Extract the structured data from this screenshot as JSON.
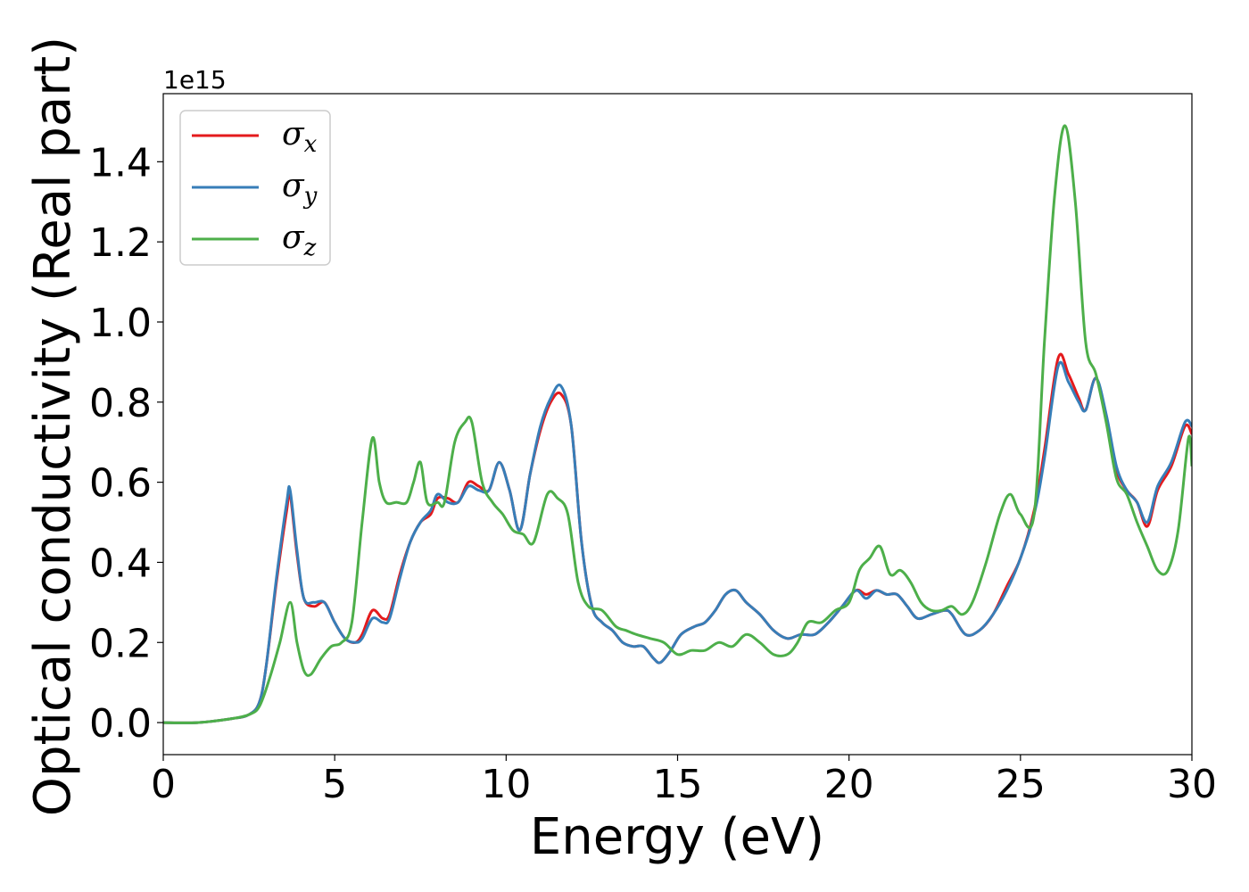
{
  "chart_data": {
    "type": "line",
    "xlabel": "Energy (eV)",
    "ylabel": "Optical conductivity (Real part)",
    "y_offset_text": "1e15",
    "y_scale": 1000000000000000.0,
    "xlim": [
      0,
      30
    ],
    "ylim": [
      -0.08,
      1.57
    ],
    "xticks": [
      0,
      5,
      10,
      15,
      20,
      25,
      30
    ],
    "xtick_labels": [
      "0",
      "5",
      "10",
      "15",
      "20",
      "25",
      "30"
    ],
    "yticks": [
      0.0,
      0.2,
      0.4,
      0.6,
      0.8,
      1.0,
      1.2,
      1.4
    ],
    "ytick_labels": [
      "0.0",
      "0.2",
      "0.4",
      "0.6",
      "0.8",
      "1.0",
      "1.2",
      "1.4"
    ],
    "grid": false,
    "legend_position": "upper-left",
    "series": [
      {
        "name": "σx",
        "legend_symbol": "σ",
        "legend_subscript": "x",
        "color": "#e41a1c",
        "x": [
          0,
          1,
          2,
          2.5,
          2.8,
          3.0,
          3.3,
          3.6,
          3.7,
          3.9,
          4.1,
          4.4,
          4.7,
          5.0,
          5.3,
          5.6,
          5.8,
          6.1,
          6.4,
          6.6,
          6.9,
          7.2,
          7.5,
          7.8,
          8.0,
          8.3,
          8.6,
          8.9,
          9.2,
          9.5,
          9.8,
          10.1,
          10.4,
          10.7,
          11.0,
          11.3,
          11.6,
          11.9,
          12.2,
          12.5,
          12.8,
          13.1,
          13.4,
          13.7,
          14.0,
          14.3,
          14.5,
          14.8,
          15.1,
          15.5,
          15.8,
          16.1,
          16.4,
          16.7,
          17.0,
          17.4,
          17.8,
          18.2,
          18.6,
          19.0,
          19.4,
          19.8,
          20.2,
          20.5,
          20.8,
          21.1,
          21.4,
          21.7,
          22.0,
          22.4,
          22.8,
          23.0,
          23.4,
          23.8,
          24.2,
          24.6,
          25.0,
          25.4,
          25.7,
          26.1,
          26.4,
          26.7,
          26.9,
          27.2,
          27.5,
          27.8,
          28.1,
          28.4,
          28.7,
          29.0,
          29.4,
          29.8,
          30.0
        ],
        "y": [
          0.0,
          0.0,
          0.01,
          0.02,
          0.05,
          0.14,
          0.35,
          0.53,
          0.57,
          0.42,
          0.31,
          0.29,
          0.3,
          0.25,
          0.21,
          0.2,
          0.22,
          0.28,
          0.26,
          0.27,
          0.37,
          0.45,
          0.5,
          0.52,
          0.56,
          0.56,
          0.55,
          0.6,
          0.59,
          0.58,
          0.65,
          0.58,
          0.48,
          0.62,
          0.73,
          0.8,
          0.82,
          0.74,
          0.45,
          0.29,
          0.25,
          0.23,
          0.2,
          0.19,
          0.19,
          0.16,
          0.15,
          0.18,
          0.22,
          0.24,
          0.25,
          0.28,
          0.32,
          0.33,
          0.3,
          0.27,
          0.23,
          0.21,
          0.22,
          0.22,
          0.25,
          0.29,
          0.33,
          0.32,
          0.33,
          0.32,
          0.32,
          0.29,
          0.26,
          0.27,
          0.28,
          0.27,
          0.22,
          0.23,
          0.27,
          0.34,
          0.41,
          0.53,
          0.68,
          0.91,
          0.87,
          0.81,
          0.78,
          0.86,
          0.76,
          0.63,
          0.58,
          0.55,
          0.49,
          0.58,
          0.64,
          0.74,
          0.72
        ]
      },
      {
        "name": "σy",
        "legend_symbol": "σ",
        "legend_subscript": "y",
        "color": "#377eb8",
        "x": [
          0,
          1,
          2,
          2.5,
          2.8,
          3.0,
          3.3,
          3.6,
          3.7,
          3.9,
          4.1,
          4.4,
          4.7,
          5.0,
          5.3,
          5.6,
          5.8,
          6.1,
          6.4,
          6.6,
          6.9,
          7.2,
          7.5,
          7.8,
          8.0,
          8.3,
          8.6,
          8.9,
          9.2,
          9.5,
          9.8,
          10.1,
          10.4,
          10.7,
          11.0,
          11.3,
          11.6,
          11.9,
          12.2,
          12.5,
          12.8,
          13.1,
          13.4,
          13.7,
          14.0,
          14.3,
          14.5,
          14.8,
          15.1,
          15.5,
          15.8,
          16.1,
          16.4,
          16.7,
          17.0,
          17.4,
          17.8,
          18.2,
          18.6,
          19.0,
          19.4,
          19.8,
          20.2,
          20.5,
          20.8,
          21.1,
          21.4,
          21.7,
          22.0,
          22.4,
          22.8,
          23.0,
          23.4,
          23.8,
          24.2,
          24.6,
          25.0,
          25.4,
          25.7,
          26.1,
          26.4,
          26.7,
          26.9,
          27.2,
          27.5,
          27.8,
          28.1,
          28.4,
          28.7,
          29.0,
          29.4,
          29.8,
          30.0
        ],
        "y": [
          0.0,
          0.0,
          0.01,
          0.02,
          0.05,
          0.14,
          0.36,
          0.55,
          0.58,
          0.43,
          0.31,
          0.3,
          0.3,
          0.25,
          0.21,
          0.2,
          0.21,
          0.26,
          0.25,
          0.26,
          0.36,
          0.45,
          0.5,
          0.53,
          0.57,
          0.55,
          0.55,
          0.59,
          0.58,
          0.58,
          0.65,
          0.58,
          0.48,
          0.62,
          0.74,
          0.81,
          0.84,
          0.74,
          0.45,
          0.29,
          0.25,
          0.23,
          0.2,
          0.19,
          0.19,
          0.16,
          0.15,
          0.18,
          0.22,
          0.24,
          0.25,
          0.28,
          0.32,
          0.33,
          0.3,
          0.27,
          0.23,
          0.21,
          0.22,
          0.22,
          0.25,
          0.29,
          0.33,
          0.31,
          0.33,
          0.32,
          0.32,
          0.29,
          0.26,
          0.27,
          0.28,
          0.27,
          0.22,
          0.23,
          0.27,
          0.33,
          0.41,
          0.52,
          0.66,
          0.89,
          0.85,
          0.8,
          0.78,
          0.86,
          0.77,
          0.64,
          0.58,
          0.55,
          0.5,
          0.59,
          0.65,
          0.75,
          0.74
        ]
      },
      {
        "name": "σz",
        "legend_symbol": "σ",
        "legend_subscript": "z",
        "color": "#4daf4a",
        "x": [
          0,
          1,
          2,
          2.5,
          2.8,
          3.1,
          3.4,
          3.7,
          3.9,
          4.1,
          4.3,
          4.6,
          4.9,
          5.2,
          5.5,
          5.8,
          6.1,
          6.3,
          6.5,
          6.8,
          7.1,
          7.3,
          7.5,
          7.7,
          8.0,
          8.2,
          8.5,
          8.8,
          9.0,
          9.3,
          9.6,
          9.9,
          10.2,
          10.5,
          10.8,
          11.2,
          11.5,
          11.8,
          12.1,
          12.4,
          12.8,
          13.2,
          13.5,
          13.8,
          14.2,
          14.6,
          15.0,
          15.4,
          15.8,
          16.2,
          16.6,
          17.0,
          17.4,
          17.8,
          18.2,
          18.5,
          18.8,
          19.2,
          19.6,
          20.0,
          20.3,
          20.6,
          20.9,
          21.2,
          21.5,
          21.8,
          22.1,
          22.4,
          22.7,
          23.0,
          23.3,
          23.6,
          24.0,
          24.4,
          24.7,
          25.0,
          25.4,
          25.7,
          26.0,
          26.3,
          26.6,
          26.9,
          27.2,
          27.5,
          27.8,
          28.1,
          28.4,
          28.7,
          29.0,
          29.3,
          29.6,
          29.9,
          30.0
        ],
        "y": [
          0.0,
          0.0,
          0.01,
          0.02,
          0.04,
          0.11,
          0.2,
          0.3,
          0.2,
          0.13,
          0.12,
          0.16,
          0.19,
          0.2,
          0.25,
          0.5,
          0.71,
          0.6,
          0.55,
          0.55,
          0.55,
          0.6,
          0.65,
          0.55,
          0.55,
          0.55,
          0.7,
          0.75,
          0.75,
          0.6,
          0.55,
          0.52,
          0.48,
          0.47,
          0.45,
          0.57,
          0.56,
          0.52,
          0.35,
          0.29,
          0.28,
          0.24,
          0.23,
          0.22,
          0.21,
          0.2,
          0.17,
          0.18,
          0.18,
          0.2,
          0.19,
          0.22,
          0.2,
          0.17,
          0.17,
          0.2,
          0.25,
          0.25,
          0.28,
          0.3,
          0.38,
          0.41,
          0.44,
          0.37,
          0.38,
          0.35,
          0.3,
          0.28,
          0.28,
          0.29,
          0.27,
          0.3,
          0.4,
          0.52,
          0.57,
          0.52,
          0.52,
          0.95,
          1.32,
          1.49,
          1.3,
          0.95,
          0.87,
          0.75,
          0.61,
          0.57,
          0.5,
          0.44,
          0.38,
          0.38,
          0.48,
          0.71,
          0.64
        ]
      }
    ]
  }
}
